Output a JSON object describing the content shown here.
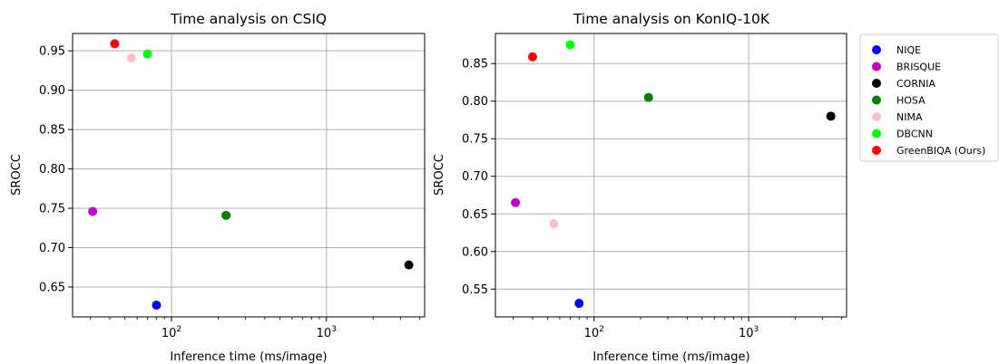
{
  "chart_data": [
    {
      "type": "scatter",
      "title": "Time analysis on CSIQ",
      "xlabel": "Inference time (ms/image)",
      "ylabel": "SROCC",
      "xscale": "log",
      "xlim": [
        23,
        4300
      ],
      "ylim": [
        0.612,
        0.972
      ],
      "xticks": [
        100,
        1000
      ],
      "yticks": [
        0.65,
        0.7,
        0.75,
        0.8,
        0.85,
        0.9,
        0.95
      ],
      "grid": true,
      "series": [
        {
          "name": "NIQE",
          "color": "#0000ff",
          "x": 80,
          "y": 0.627
        },
        {
          "name": "BRISQUE",
          "color": "#bf00bf",
          "x": 31,
          "y": 0.746
        },
        {
          "name": "CORNIA",
          "color": "#000000",
          "x": 3400,
          "y": 0.678
        },
        {
          "name": "HOSA",
          "color": "#008000",
          "x": 225,
          "y": 0.741
        },
        {
          "name": "NIMA",
          "color": "#ffc0cb",
          "x": 55,
          "y": 0.941
        },
        {
          "name": "DBCNN",
          "color": "#00ff00",
          "x": 70,
          "y": 0.946
        },
        {
          "name": "GreenBIQA (Ours)",
          "color": "#ff0000",
          "x": 43,
          "y": 0.959
        }
      ]
    },
    {
      "type": "scatter",
      "title": "Time analysis on KonIQ-10K",
      "xlabel": "Inference time (ms/image)",
      "ylabel": "SROCC",
      "xscale": "log",
      "xlim": [
        23,
        4300
      ],
      "ylim": [
        0.513,
        0.89
      ],
      "xticks": [
        100,
        1000
      ],
      "yticks": [
        0.55,
        0.6,
        0.65,
        0.7,
        0.75,
        0.8,
        0.85
      ],
      "grid": true,
      "series": [
        {
          "name": "NIQE",
          "color": "#0000ff",
          "x": 80,
          "y": 0.531
        },
        {
          "name": "BRISQUE",
          "color": "#bf00bf",
          "x": 31,
          "y": 0.665
        },
        {
          "name": "CORNIA",
          "color": "#000000",
          "x": 3400,
          "y": 0.78
        },
        {
          "name": "HOSA",
          "color": "#008000",
          "x": 225,
          "y": 0.805
        },
        {
          "name": "NIMA",
          "color": "#ffc0cb",
          "x": 55,
          "y": 0.637
        },
        {
          "name": "DBCNN",
          "color": "#00ff00",
          "x": 70,
          "y": 0.875
        },
        {
          "name": "GreenBIQA (Ours)",
          "color": "#ff0000",
          "x": 40,
          "y": 0.859
        }
      ]
    }
  ],
  "legend": {
    "placement": "outside-right",
    "entries": [
      "NIQE",
      "BRISQUE",
      "CORNIA",
      "HOSA",
      "NIMA",
      "DBCNN",
      "GreenBIQA (Ours)"
    ]
  }
}
